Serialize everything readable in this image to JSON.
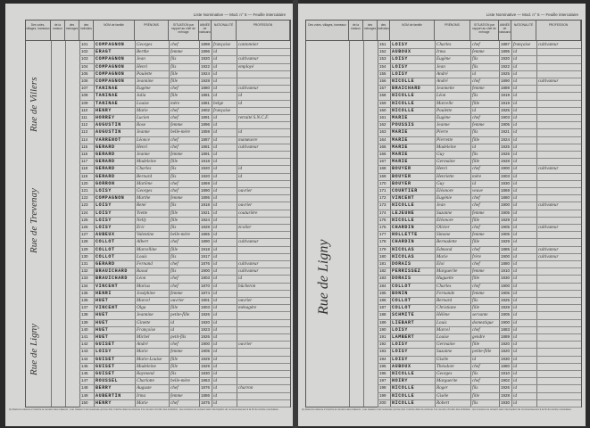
{
  "masthead": "Liste Nominative — Mod. n° 5 — Feuille intercalaire",
  "columns": {
    "designation": "DÉSIGNATION",
    "voies": "Des voies, villages, hameaux",
    "maisons": "Nos des maisons",
    "numeros": "NUMÉROS",
    "num_maison": "de la maison",
    "num_menage": "des ménages",
    "num_individu": "des individus",
    "nom": "NOM de famille",
    "prenoms": "PRÉNOMS",
    "situation": "SITUATION par rapport au chef de ménage",
    "annee": "ANNÉE de naissance",
    "nationalite": "NATIONALITÉ",
    "profession": "PROFESSION"
  },
  "left_page": {
    "streets": [
      "Rue de Villers",
      "Rue de Trevenay",
      "Rue de Ligny"
    ],
    "rows": [
      {
        "n": "101",
        "nom": "COMPAGNON",
        "pre": "Georges",
        "sit": "chef",
        "an": "1898",
        "nat": "française",
        "prof": "cantonnier"
      },
      {
        "n": "102",
        "nom": "ERAGT",
        "pre": "Berthe",
        "sit": "femme",
        "an": "1896",
        "nat": "id",
        "prof": ""
      },
      {
        "n": "103",
        "nom": "COMPAGNON",
        "pre": "Jean",
        "sit": "fils",
        "an": "1920",
        "nat": "id",
        "prof": "cultivateur"
      },
      {
        "n": "104",
        "nom": "COMPAGNON",
        "pre": "Henri",
        "sit": "fils",
        "an": "1922",
        "nat": "id",
        "prof": "employé"
      },
      {
        "n": "105",
        "nom": "COMPAGNON",
        "pre": "Paulette",
        "sit": "fille",
        "an": "1924",
        "nat": "id",
        "prof": ""
      },
      {
        "n": "106",
        "nom": "COMPAGNON",
        "pre": "Jeannine",
        "sit": "fille",
        "an": "1928",
        "nat": "id",
        "prof": ""
      },
      {
        "n": "107",
        "nom": "TANINAE",
        "pre": "Eugène",
        "sit": "chef",
        "an": "1880",
        "nat": "id",
        "prof": "cultivateur"
      },
      {
        "n": "108",
        "nom": "TANINAE",
        "pre": "Julia",
        "sit": "fille",
        "an": "1881",
        "nat": "id",
        "prof": "id"
      },
      {
        "n": "109",
        "nom": "TANINAE",
        "pre": "Louise",
        "sit": "mère",
        "an": "1881",
        "nat": "belge",
        "prof": "id"
      },
      {
        "n": "110",
        "nom": "HENRY",
        "pre": "Marie",
        "sit": "chef",
        "an": "1902",
        "nat": "française",
        "prof": ""
      },
      {
        "n": "111",
        "nom": "HORREY",
        "pre": "Lucien",
        "sit": "chef",
        "an": "1891",
        "nat": "id",
        "prof": "retraité S.N.C.F."
      },
      {
        "n": "112",
        "nom": "AUGUSTIN",
        "pre": "Rose",
        "sit": "femme",
        "an": "1896",
        "nat": "id",
        "prof": ""
      },
      {
        "n": "113",
        "nom": "AUGUSTIN",
        "pre": "Jeanne",
        "sit": "belle-mère",
        "an": "1859",
        "nat": "id",
        "prof": "id"
      },
      {
        "n": "114",
        "nom": "VARRENOT",
        "pre": "Léonce",
        "sit": "chef",
        "an": "1887",
        "nat": "id",
        "prof": "manœuvre"
      },
      {
        "n": "115",
        "nom": "GERARD",
        "pre": "Henri",
        "sit": "chef",
        "an": "1881",
        "nat": "id",
        "prof": "cultivateur"
      },
      {
        "n": "116",
        "nom": "GERARD",
        "pre": "Jeanne",
        "sit": "femme",
        "an": "1891",
        "nat": "id",
        "prof": ""
      },
      {
        "n": "117",
        "nom": "GERARD",
        "pre": "Madeleine",
        "sit": "fille",
        "an": "1918",
        "nat": "id",
        "prof": ""
      },
      {
        "n": "118",
        "nom": "GERARD",
        "pre": "Charles",
        "sit": "fils",
        "an": "1920",
        "nat": "id",
        "prof": "id"
      },
      {
        "n": "119",
        "nom": "GERARD",
        "pre": "Bernard",
        "sit": "fils",
        "an": "1920",
        "nat": "id",
        "prof": "id"
      },
      {
        "n": "120",
        "nom": "GORRON",
        "pre": "Marlène",
        "sit": "chef",
        "an": "1869",
        "nat": "id",
        "prof": ""
      },
      {
        "n": "121",
        "nom": "LOISY",
        "pre": "Georges",
        "sit": "chef",
        "an": "1890",
        "nat": "id",
        "prof": "ouvrier"
      },
      {
        "n": "122",
        "nom": "COMPAGNON",
        "pre": "Marthe",
        "sit": "femme",
        "an": "1895",
        "nat": "id",
        "prof": ""
      },
      {
        "n": "123",
        "nom": "LOISY",
        "pre": "René",
        "sit": "fils",
        "an": "1918",
        "nat": "id",
        "prof": "ouvrier"
      },
      {
        "n": "124",
        "nom": "LOISY",
        "pre": "Yvette",
        "sit": "fille",
        "an": "1921",
        "nat": "id",
        "prof": "couturière"
      },
      {
        "n": "125",
        "nom": "LOISY",
        "pre": "Nelly",
        "sit": "fille",
        "an": "1924",
        "nat": "id",
        "prof": ""
      },
      {
        "n": "126",
        "nom": "LOISY",
        "pre": "Eric",
        "sit": "fils",
        "an": "1928",
        "nat": "id",
        "prof": "écolier"
      },
      {
        "n": "127",
        "nom": "AUBEUX",
        "pre": "Valentine",
        "sit": "belle-mère",
        "an": "1865",
        "nat": "id",
        "prof": ""
      },
      {
        "n": "128",
        "nom": "COLLOT",
        "pre": "Albert",
        "sit": "chef",
        "an": "1890",
        "nat": "id",
        "prof": "cultivateur"
      },
      {
        "n": "129",
        "nom": "COLLOT",
        "pre": "Marcelline",
        "sit": "fille",
        "an": "1918",
        "nat": "id",
        "prof": ""
      },
      {
        "n": "130",
        "nom": "COLLOT",
        "pre": "Louis",
        "sit": "fils",
        "an": "1917",
        "nat": "id",
        "prof": ""
      },
      {
        "n": "131",
        "nom": "GERARD",
        "pre": "Fernand",
        "sit": "chef",
        "an": "1876",
        "nat": "id",
        "prof": "cultivateur"
      },
      {
        "n": "132",
        "nom": "BRAUICHARD",
        "pre": "Raoul",
        "sit": "fils",
        "an": "1900",
        "nat": "id",
        "prof": "cultivateur"
      },
      {
        "n": "133",
        "nom": "BRAUICHARD",
        "pre": "Léon",
        "sit": "chef",
        "an": "1903",
        "nat": "id",
        "prof": "id"
      },
      {
        "n": "134",
        "nom": "VINCENT",
        "pre": "Marius",
        "sit": "chef",
        "an": "1870",
        "nat": "id",
        "prof": "bûcheron"
      },
      {
        "n": "135",
        "nom": "HENRI",
        "pre": "Joséphine",
        "sit": "femme",
        "an": "1874",
        "nat": "id",
        "prof": ""
      },
      {
        "n": "136",
        "nom": "HUET",
        "pre": "Marcel",
        "sit": "ouvrier",
        "an": "1901",
        "nat": "id",
        "prof": "ouvrier"
      },
      {
        "n": "137",
        "nom": "VINCENT",
        "pre": "Olga",
        "sit": "fille",
        "an": "1903",
        "nat": "id",
        "prof": "ménagère"
      },
      {
        "n": "138",
        "nom": "HUET",
        "pre": "Jeannine",
        "sit": "petite-fille",
        "an": "1926",
        "nat": "id",
        "prof": ""
      },
      {
        "n": "139",
        "nom": "HUET",
        "pre": "Ginette",
        "sit": "id",
        "an": "1920",
        "nat": "id",
        "prof": ""
      },
      {
        "n": "140",
        "nom": "HUET",
        "pre": "Françoise",
        "sit": "id",
        "an": "1923",
        "nat": "id",
        "prof": ""
      },
      {
        "n": "141",
        "nom": "HUET",
        "pre": "Michel",
        "sit": "petit-fils",
        "an": "1926",
        "nat": "id",
        "prof": ""
      },
      {
        "n": "142",
        "nom": "GUISET",
        "pre": "André",
        "sit": "chef",
        "an": "1900",
        "nat": "id",
        "prof": "ouvrier"
      },
      {
        "n": "143",
        "nom": "LOISY",
        "pre": "Marie",
        "sit": "femme",
        "an": "1905",
        "nat": "id",
        "prof": ""
      },
      {
        "n": "144",
        "nom": "GUISET",
        "pre": "Marie-Louise",
        "sit": "fille",
        "an": "1929",
        "nat": "id",
        "prof": ""
      },
      {
        "n": "145",
        "nom": "GUISET",
        "pre": "Madeleine",
        "sit": "fille",
        "an": "1929",
        "nat": "id",
        "prof": ""
      },
      {
        "n": "146",
        "nom": "GUISET",
        "pre": "Raymond",
        "sit": "fils",
        "an": "1930",
        "nat": "id",
        "prof": ""
      },
      {
        "n": "147",
        "nom": "ROUSSEL",
        "pre": "Charlotte",
        "sit": "belle-mère",
        "an": "1863",
        "nat": "id",
        "prof": ""
      },
      {
        "n": "148",
        "nom": "BERRY",
        "pre": "Auguste",
        "sit": "chef",
        "an": "1876",
        "nat": "id",
        "prof": "charron"
      },
      {
        "n": "149",
        "nom": "AUBERTIN",
        "pre": "Irma",
        "sit": "femme",
        "an": "1886",
        "nat": "id",
        "prof": ""
      },
      {
        "n": "150",
        "nom": "HENRY",
        "pre": "Marie",
        "sit": "chef",
        "an": "1875",
        "nat": "id",
        "prof": ""
      }
    ]
  },
  "right_page": {
    "streets": [
      "Rue de Ligny"
    ],
    "rows": [
      {
        "n": "151",
        "nom": "LOISY",
        "pre": "Charles",
        "sit": "chef",
        "an": "1887",
        "nat": "française",
        "prof": "cultivateur"
      },
      {
        "n": "152",
        "nom": "AUBOUX",
        "pre": "Irma",
        "sit": "femme",
        "an": "1895",
        "nat": "id",
        "prof": ""
      },
      {
        "n": "153",
        "nom": "LOISY",
        "pre": "Eugène",
        "sit": "fils",
        "an": "1920",
        "nat": "id",
        "prof": ""
      },
      {
        "n": "154",
        "nom": "LOISY",
        "pre": "Jean",
        "sit": "fils",
        "an": "1922",
        "nat": "id",
        "prof": ""
      },
      {
        "n": "155",
        "nom": "LOISY",
        "pre": "André",
        "sit": "id",
        "an": "1925",
        "nat": "id",
        "prof": ""
      },
      {
        "n": "156",
        "nom": "NICOLLE",
        "pre": "André",
        "sit": "chef",
        "an": "1890",
        "nat": "id",
        "prof": "cultivateur"
      },
      {
        "n": "157",
        "nom": "BRAICHARD",
        "pre": "Jeannette",
        "sit": "femme",
        "an": "1889",
        "nat": "id",
        "prof": ""
      },
      {
        "n": "158",
        "nom": "NICOLLE",
        "pre": "Léon",
        "sit": "fils",
        "an": "1919",
        "nat": "id",
        "prof": ""
      },
      {
        "n": "159",
        "nom": "NICOLLE",
        "pre": "Marcelle",
        "sit": "fille",
        "an": "1919",
        "nat": "id",
        "prof": ""
      },
      {
        "n": "160",
        "nom": "NICOLLE",
        "pre": "Paulette",
        "sit": "id",
        "an": "1925",
        "nat": "id",
        "prof": ""
      },
      {
        "n": "161",
        "nom": "MARIE",
        "pre": "Eugène",
        "sit": "chef",
        "an": "1903",
        "nat": "id",
        "prof": ""
      },
      {
        "n": "162",
        "nom": "POUSSIS",
        "pre": "Jeanne",
        "sit": "femme",
        "an": "1905",
        "nat": "id",
        "prof": ""
      },
      {
        "n": "163",
        "nom": "MARIE",
        "pre": "Pierre",
        "sit": "fils",
        "an": "1921",
        "nat": "id",
        "prof": ""
      },
      {
        "n": "164",
        "nom": "MARIE",
        "pre": "Pierrette",
        "sit": "fille",
        "an": "1924",
        "nat": "id",
        "prof": ""
      },
      {
        "n": "165",
        "nom": "MARIE",
        "pre": "Madeleine",
        "sit": "id",
        "an": "1925",
        "nat": "id",
        "prof": ""
      },
      {
        "n": "166",
        "nom": "MARIE",
        "pre": "Guy",
        "sit": "fils",
        "an": "1926",
        "nat": "id",
        "prof": ""
      },
      {
        "n": "167",
        "nom": "MARIE",
        "pre": "Germaine",
        "sit": "fille",
        "an": "1928",
        "nat": "id",
        "prof": ""
      },
      {
        "n": "168",
        "nom": "BOUYER",
        "pre": "Henri",
        "sit": "chef",
        "an": "1900",
        "nat": "id",
        "prof": "cultivateur"
      },
      {
        "n": "169",
        "nom": "BOUYER",
        "pre": "Henriette",
        "sit": "mère",
        "an": "1903",
        "nat": "id",
        "prof": ""
      },
      {
        "n": "170",
        "nom": "BOUYER",
        "pre": "Guy",
        "sit": "id",
        "an": "1930",
        "nat": "id",
        "prof": ""
      },
      {
        "n": "171",
        "nom": "COURTIER",
        "pre": "Eléonore",
        "sit": "veuve",
        "an": "1869",
        "nat": "id",
        "prof": ""
      },
      {
        "n": "172",
        "nom": "VINCENT",
        "pre": "Eugénie",
        "sit": "chef",
        "an": "1880",
        "nat": "id",
        "prof": ""
      },
      {
        "n": "173",
        "nom": "NICOLLE",
        "pre": "Jean",
        "sit": "chef",
        "an": "1900",
        "nat": "id",
        "prof": "cultivateur"
      },
      {
        "n": "174",
        "nom": "LEJEUNE",
        "pre": "Suzanne",
        "sit": "femme",
        "an": "1905",
        "nat": "id",
        "prof": ""
      },
      {
        "n": "175",
        "nom": "NICOLLE",
        "pre": "Eléonore",
        "sit": "fille",
        "an": "1929",
        "nat": "id",
        "prof": ""
      },
      {
        "n": "176",
        "nom": "CHARDIN",
        "pre": "Olivier",
        "sit": "chef",
        "an": "1905",
        "nat": "id",
        "prof": "cultivateur"
      },
      {
        "n": "177",
        "nom": "NOLLETTE",
        "pre": "Simone",
        "sit": "femme",
        "an": "1905",
        "nat": "id",
        "prof": ""
      },
      {
        "n": "178",
        "nom": "CHARDIN",
        "pre": "Bernadette",
        "sit": "fille",
        "an": "1929",
        "nat": "id",
        "prof": ""
      },
      {
        "n": "179",
        "nom": "NICOLAS",
        "pre": "Edmond",
        "sit": "chef",
        "an": "1885",
        "nat": "id",
        "prof": "cultivateur"
      },
      {
        "n": "180",
        "nom": "NICOLAS",
        "pre": "Marie",
        "sit": "frère",
        "an": "1900",
        "nat": "id",
        "prof": "cultivateur"
      },
      {
        "n": "181",
        "nom": "DORAIS",
        "pre": "Eloi",
        "sit": "chef",
        "an": "1880",
        "nat": "id",
        "prof": ""
      },
      {
        "n": "182",
        "nom": "PERRISSEZ",
        "pre": "Marguerite",
        "sit": "femme",
        "an": "1910",
        "nat": "id",
        "prof": ""
      },
      {
        "n": "183",
        "nom": "DORAIS",
        "pre": "Huguette",
        "sit": "fille",
        "an": "1930",
        "nat": "id",
        "prof": ""
      },
      {
        "n": "184",
        "nom": "COLLOT",
        "pre": "Charles",
        "sit": "chef",
        "an": "1900",
        "nat": "id",
        "prof": ""
      },
      {
        "n": "185",
        "nom": "BONIN",
        "pre": "Fernande",
        "sit": "femme",
        "an": "1905",
        "nat": "id",
        "prof": ""
      },
      {
        "n": "186",
        "nom": "COLLOT",
        "pre": "Bernard",
        "sit": "fils",
        "an": "1925",
        "nat": "id",
        "prof": ""
      },
      {
        "n": "187",
        "nom": "COLLOT",
        "pre": "Christiane",
        "sit": "fille",
        "an": "1928",
        "nat": "id",
        "prof": ""
      },
      {
        "n": "188",
        "nom": "SCHMITE",
        "pre": "Hélène",
        "sit": "servante",
        "an": "1905",
        "nat": "id",
        "prof": ""
      },
      {
        "n": "189",
        "nom": "LIEBART",
        "pre": "Louis",
        "sit": "domestique",
        "an": "1900",
        "nat": "id",
        "prof": ""
      },
      {
        "n": "190",
        "nom": "LOISY",
        "pre": "Marcel",
        "sit": "chef",
        "an": "1883",
        "nat": "id",
        "prof": ""
      },
      {
        "n": "191",
        "nom": "LAMBERT",
        "pre": "Louise",
        "sit": "gendre",
        "an": "1889",
        "nat": "id",
        "prof": ""
      },
      {
        "n": "192",
        "nom": "LOISY",
        "pre": "Germaine",
        "sit": "fille",
        "an": "1920",
        "nat": "id",
        "prof": ""
      },
      {
        "n": "193",
        "nom": "LOISY",
        "pre": "Suzanne",
        "sit": "petite-fille",
        "an": "1920",
        "nat": "id",
        "prof": ""
      },
      {
        "n": "194",
        "nom": "LOISY",
        "pre": "Gisèle",
        "sit": "id",
        "an": "1930",
        "nat": "id",
        "prof": ""
      },
      {
        "n": "195",
        "nom": "AUBOUX",
        "pre": "Théodore",
        "sit": "chef",
        "an": "1880",
        "nat": "id",
        "prof": ""
      },
      {
        "n": "196",
        "nom": "NICOLLE",
        "pre": "Georges",
        "sit": "fils",
        "an": "1910",
        "nat": "id",
        "prof": ""
      },
      {
        "n": "197",
        "nom": "NOIRY",
        "pre": "Marguerite",
        "sit": "chef",
        "an": "1902",
        "nat": "id",
        "prof": ""
      },
      {
        "n": "198",
        "nom": "NICOLLE",
        "pre": "Roger",
        "sit": "fils",
        "an": "1926",
        "nat": "id",
        "prof": ""
      },
      {
        "n": "199",
        "nom": "NICOLLE",
        "pre": "Gisèle",
        "sit": "fille",
        "an": "1928",
        "nat": "id",
        "prof": ""
      },
      {
        "n": "200",
        "nom": "NICOLLE",
        "pre": "Robert",
        "sit": "fils",
        "an": "1930",
        "nat": "id",
        "prof": ""
      }
    ]
  },
  "footnote": "(1) Dans la colonne 2 inscrire le numéro des maisons ; une maison n'est recensée qu'une fois. Inscrire dans la colonne 4 le numéro d'ordre des individus ; les numéros se suivent sans interruption du commencement à la fin de la liste nominative."
}
